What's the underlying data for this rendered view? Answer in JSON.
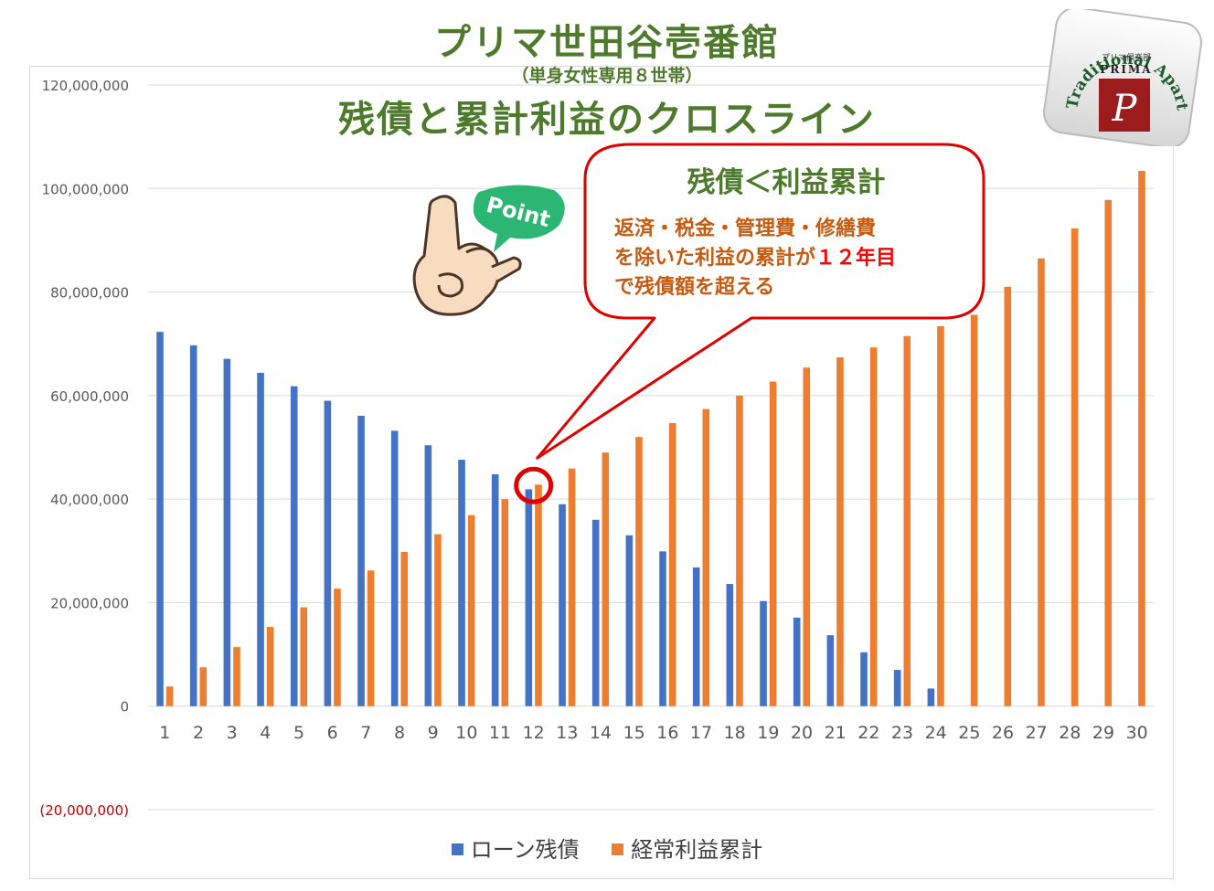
{
  "title": {
    "main": "プリマ世田谷壱番館",
    "sub": "（単身女性専用８世帯）",
    "second": "残債と累計利益のクロスライン"
  },
  "callout": {
    "heading": "残債＜利益累計",
    "line1": "返済・税金・管理費・修繕費",
    "line2_prefix": "を除いた利益の累計が",
    "line2_highlight": "１２年目",
    "line3": "で残債額を超える"
  },
  "badge": {
    "text": "Point"
  },
  "logo": {
    "top_text": "Traditional Apartment",
    "middle_text": "プリマ倶楽部",
    "brand": "PRIMA",
    "initial": "P"
  },
  "colors": {
    "loan": "#4472c4",
    "profit": "#ed7d31",
    "title": "#4e7a2c",
    "callout_border": "#e00000",
    "negative_tick": "#c00000"
  },
  "chart_data": {
    "type": "bar",
    "categories": [
      1,
      2,
      3,
      4,
      5,
      6,
      7,
      8,
      9,
      10,
      11,
      12,
      13,
      14,
      15,
      16,
      17,
      18,
      19,
      20,
      21,
      22,
      23,
      24,
      25,
      26,
      27,
      28,
      29,
      30
    ],
    "series": [
      {
        "name": "ローン残債",
        "values": [
          72300000,
          69700000,
          67100000,
          64400000,
          61800000,
          59000000,
          56100000,
          53200000,
          50400000,
          47600000,
          44800000,
          41900000,
          39000000,
          36000000,
          33000000,
          29900000,
          26800000,
          23600000,
          20300000,
          17100000,
          13700000,
          10400000,
          7000000,
          3400000,
          0,
          0,
          0,
          0,
          0,
          0
        ]
      },
      {
        "name": "経常利益累計",
        "values": [
          3800000,
          7500000,
          11400000,
          15300000,
          19100000,
          22700000,
          26200000,
          29800000,
          33200000,
          36900000,
          40000000,
          42800000,
          45900000,
          49000000,
          52000000,
          54700000,
          57400000,
          60000000,
          62700000,
          65400000,
          67400000,
          69300000,
          71500000,
          73400000,
          75600000,
          81000000,
          86500000,
          92300000,
          97800000,
          103400000
        ]
      }
    ],
    "ylim": [
      -20000000,
      120000000
    ],
    "yticks": [
      {
        "value": 120000000,
        "label": "120,000,000"
      },
      {
        "value": 100000000,
        "label": "100,000,000"
      },
      {
        "value": 80000000,
        "label": "80,000,000"
      },
      {
        "value": 60000000,
        "label": "60,000,000"
      },
      {
        "value": 40000000,
        "label": "40,000,000"
      },
      {
        "value": 20000000,
        "label": "20,000,000"
      },
      {
        "value": 0,
        "label": "0"
      },
      {
        "value": -20000000,
        "label": "(20,000,000)"
      }
    ],
    "grid": true,
    "legend_position": "bottom",
    "crossover_year": 12
  }
}
